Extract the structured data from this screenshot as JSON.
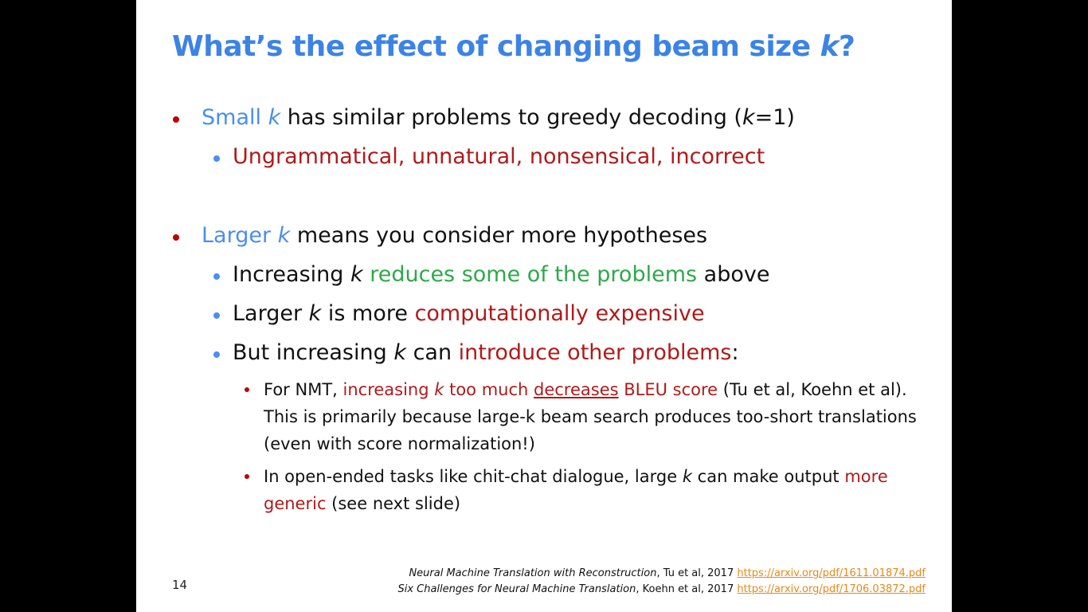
{
  "slide": {
    "title": {
      "text": "What’s the effect of changing beam size ",
      "k": "k",
      "end": "?"
    },
    "bullets": {
      "b1": {
        "t1": "Small ",
        "k": "k",
        "t2": " has similar problems to greedy decoding (",
        "k2": "k",
        "t3": "=1)",
        "sub1": "Ungrammatical, unnatural, nonsensical, incorrect"
      },
      "b2": {
        "t1": "Larger ",
        "k": "k",
        "t2": " means you consider more hypotheses",
        "s1": {
          "t1": "Increasing ",
          "k": "k",
          "t2": " ",
          "green": "reduces some of the problems",
          "t3": " above"
        },
        "s2": {
          "t1": "Larger ",
          "k": "k",
          "t2": " is more ",
          "red": "computationally expensive"
        },
        "s3": {
          "t1": "But increasing ",
          "k": "k",
          "t2": " can ",
          "red": "introduce other problems",
          "t3": ":"
        },
        "ss1": {
          "t1": "For NMT, ",
          "red1": "increasing ",
          "k": "k",
          "red2": " too much ",
          "red_ul": "decreases",
          "red3": " BLEU score",
          "t2": " (Tu et al, Koehn et al). This is primarily because large-k beam search produces too-short translations (even with score normalization!)"
        },
        "ss2": {
          "t1": "In open-ended tasks like chit-chat dialogue, large ",
          "k": "k",
          "t2": " can make output ",
          "red": "more generic",
          "t3": " (see next slide)"
        }
      }
    },
    "page_number": "14",
    "references": [
      {
        "title": "Neural Machine Translation with Reconstruction",
        "authors": ", Tu et al, 2017 ",
        "link": "https://arxiv.org/pdf/1611.01874.pdf"
      },
      {
        "title": "Six Challenges for Neural Machine Translation",
        "authors": ", Koehn et al, 2017 ",
        "link": "https://arxiv.org/pdf/1706.03872.pdf"
      }
    ],
    "colors": {
      "title": "#3c83e6",
      "accent_blue": "#4a8ef0",
      "accent_red": "#b01a1a",
      "accent_green": "#2fa84a",
      "link": "#e8891a"
    }
  }
}
